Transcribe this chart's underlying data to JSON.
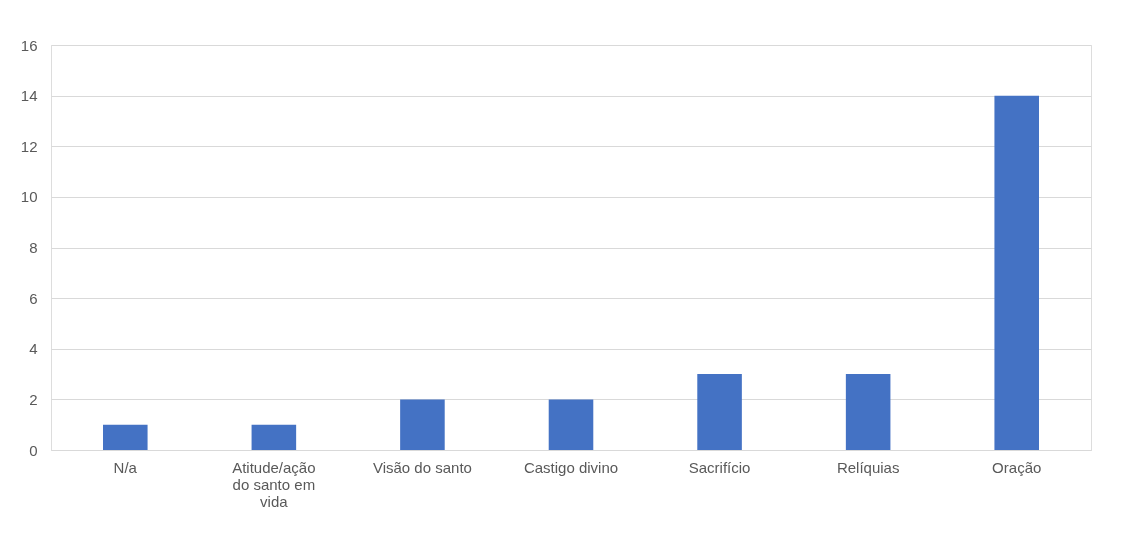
{
  "chart_data": {
    "type": "bar",
    "categories": [
      "N/a",
      "Atitude/ação do santo em vida",
      "Visão do santo",
      "Castigo divino",
      "Sacrifício",
      "Relíquias",
      "Oração"
    ],
    "values": [
      1,
      1,
      2,
      2,
      3,
      3,
      14
    ],
    "color": "#4472c4",
    "ylim": [
      0,
      16
    ],
    "yticks": [
      0,
      2,
      4,
      6,
      8,
      10,
      12,
      14,
      16
    ],
    "grid": "y"
  }
}
